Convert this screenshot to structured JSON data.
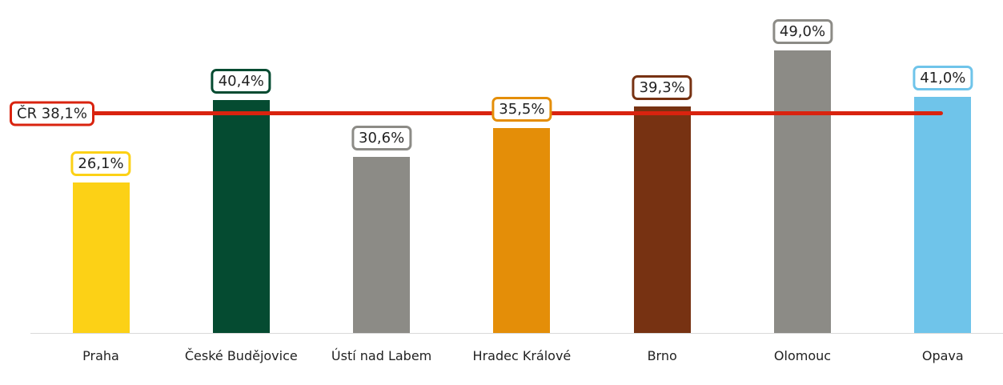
{
  "chart_data": {
    "type": "bar",
    "categories": [
      "Praha",
      "České Budějovice",
      "Ústí nad Labem",
      "Hradec Králové",
      "Brno",
      "Olomouc",
      "Opava"
    ],
    "values": [
      26.1,
      40.4,
      30.6,
      35.5,
      39.3,
      49.0,
      41.0
    ],
    "value_labels": [
      "26,1%",
      "40,4%",
      "30,6%",
      "35,5%",
      "39,3%",
      "49,0%",
      "41,0%"
    ],
    "colors": [
      "#fcd116",
      "#054b31",
      "#8c8b86",
      "#e48e08",
      "#773212",
      "#8c8b86",
      "#6fc4ea"
    ],
    "ylim": [
      0,
      55
    ],
    "reference_line": {
      "value": 38.1,
      "label": "ČR 38,1%",
      "color": "#d9230f"
    }
  }
}
